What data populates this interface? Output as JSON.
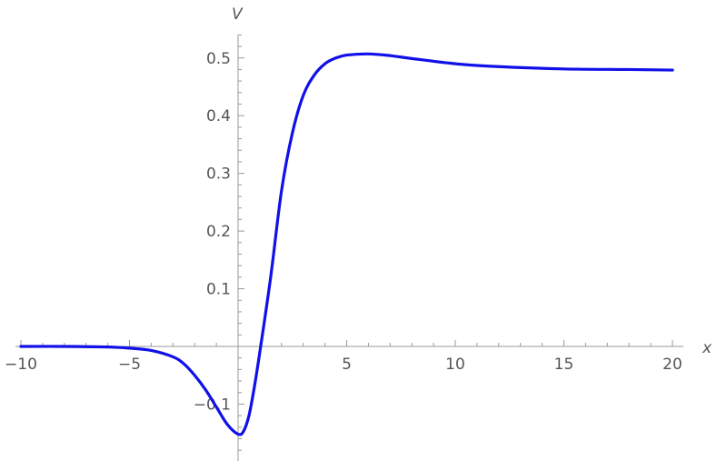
{
  "chart_data": {
    "type": "line",
    "xlabel": "x",
    "ylabel": "V",
    "xlim": [
      -10,
      20
    ],
    "ylim": [
      -0.2,
      0.55
    ],
    "grid": false,
    "line_color": "#1010e8",
    "axis_color": "#999999",
    "x_ticks": [
      {
        "value": -10,
        "label": "−10"
      },
      {
        "value": -5,
        "label": "−5"
      },
      {
        "value": 5,
        "label": "5"
      },
      {
        "value": 10,
        "label": "10"
      },
      {
        "value": 15,
        "label": "15"
      },
      {
        "value": 20,
        "label": "20"
      }
    ],
    "y_ticks": [
      {
        "value": -0.1,
        "label": "−0.1"
      },
      {
        "value": 0.1,
        "label": "0.1"
      },
      {
        "value": 0.2,
        "label": "0.2"
      },
      {
        "value": 0.3,
        "label": "0.3"
      },
      {
        "value": 0.4,
        "label": "0.4"
      },
      {
        "value": 0.5,
        "label": "0.5"
      }
    ],
    "series": [
      {
        "x": [
          -10,
          -8,
          -6,
          -5,
          -4,
          -3,
          -2.5,
          -2,
          -1.5,
          -1,
          -0.5,
          0,
          0.25,
          0.5,
          0.75,
          1,
          1.5,
          2,
          2.5,
          3,
          3.5,
          4,
          4.5,
          5,
          6,
          7,
          8,
          10,
          12,
          15,
          18,
          20
        ],
        "y": [
          0,
          0,
          -0.001,
          -0.003,
          -0.007,
          -0.018,
          -0.03,
          -0.05,
          -0.075,
          -0.105,
          -0.135,
          -0.152,
          -0.147,
          -0.12,
          -0.07,
          -0.01,
          0.12,
          0.27,
          0.37,
          0.435,
          0.47,
          0.49,
          0.5,
          0.505,
          0.507,
          0.504,
          0.499,
          0.49,
          0.485,
          0.481,
          0.48,
          0.479
        ]
      }
    ]
  }
}
